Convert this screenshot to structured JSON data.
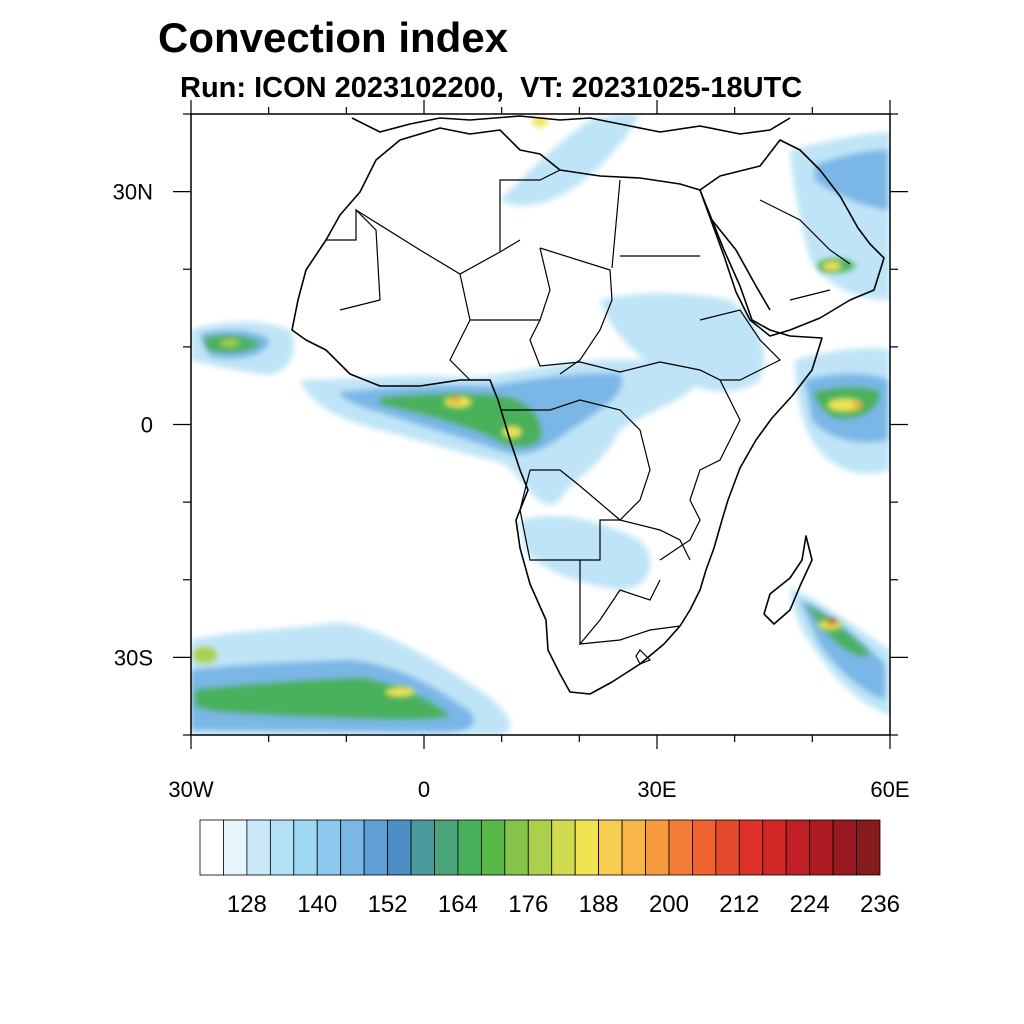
{
  "header": {
    "title": "Convection index",
    "subtitle": "Run: ICON 2023102200,  VT: 20231025-18UTC"
  },
  "map": {
    "region": "Africa",
    "lon_range": [
      -30,
      60
    ],
    "lat_range": [
      -40,
      40
    ],
    "y_ticks": [
      {
        "lat": 30,
        "label": "30N"
      },
      {
        "lat": 0,
        "label": "0"
      },
      {
        "lat": -30,
        "label": "30S"
      }
    ],
    "x_ticks": [
      {
        "lon": -30,
        "label": "30W"
      },
      {
        "lon": 0,
        "label": "0"
      },
      {
        "lon": 30,
        "label": "30E"
      },
      {
        "lon": 60,
        "label": "60E"
      }
    ]
  },
  "colorbar": {
    "labels": [
      "128",
      "140",
      "152",
      "164",
      "176",
      "188",
      "200",
      "212",
      "224",
      "236"
    ],
    "colors": [
      "#ffffff",
      "#e6f4fc",
      "#cbe9f8",
      "#b4e0f6",
      "#9fd8f3",
      "#8ec9ef",
      "#7ab6e6",
      "#5f9fd6",
      "#4d8ec4",
      "#4a9a9c",
      "#4aa67a",
      "#48b05c",
      "#57b848",
      "#86c34a",
      "#aad04c",
      "#d0dc4e",
      "#f1e252",
      "#f7cc50",
      "#f7b54a",
      "#f69a40",
      "#f37c37",
      "#ee6230",
      "#e64a2c",
      "#dd3129",
      "#d22727",
      "#c01f25",
      "#ad1a22",
      "#981a1e",
      "#851b1c"
    ]
  },
  "colors": {
    "coast": "#000000",
    "light_blue": "#b4e0f6",
    "mid_blue": "#7ab6e6",
    "green": "#48b05c",
    "yellow": "#f1e252",
    "orange": "#f69a40",
    "red": "#dd3129"
  }
}
